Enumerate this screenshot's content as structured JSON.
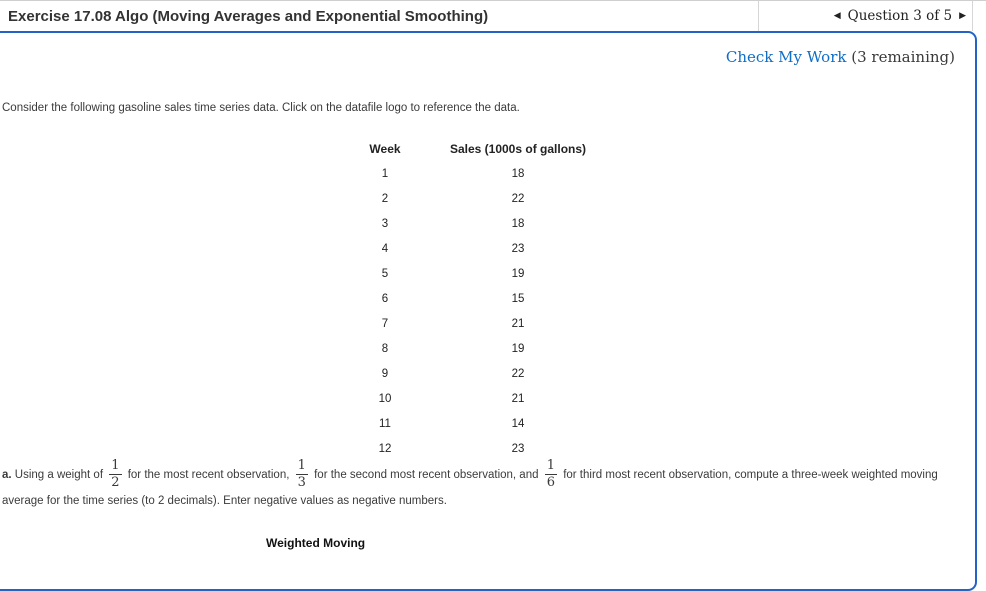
{
  "header": {
    "title": "Exercise 17.08 Algo (Moving Averages and Exponential Smoothing)",
    "nav": {
      "prev_icon": "◀",
      "label": "Question 3 of 5",
      "next_icon": "▶"
    }
  },
  "check_my_work": {
    "link": "Check My Work",
    "remaining": "(3 remaining)"
  },
  "intro": "Consider the following gasoline sales time series data. Click on the datafile logo to reference the data.",
  "table": {
    "columns": [
      "Week",
      "Sales (1000s of gallons)"
    ],
    "rows": [
      [
        1,
        18
      ],
      [
        2,
        22
      ],
      [
        3,
        18
      ],
      [
        4,
        23
      ],
      [
        5,
        19
      ],
      [
        6,
        15
      ],
      [
        7,
        21
      ],
      [
        8,
        19
      ],
      [
        9,
        22
      ],
      [
        10,
        21
      ],
      [
        11,
        14
      ],
      [
        12,
        23
      ]
    ]
  },
  "part_a": {
    "label": "a.",
    "seg1": "Using a weight of",
    "frac1": {
      "num": "1",
      "den": "2"
    },
    "seg2": "for the most recent observation,",
    "frac2": {
      "num": "1",
      "den": "3"
    },
    "seg3": "for the second most recent observation, and",
    "frac3": {
      "num": "1",
      "den": "6"
    },
    "seg4": "for third most recent observation, compute a three-week weighted moving average for the time series (to 2 decimals). Enter negative values as negative numbers."
  },
  "bottom": {
    "partial_header": "Weighted Moving"
  },
  "colors": {
    "panel_border": "#2463c6",
    "link_blue": "#0f6dc6"
  }
}
